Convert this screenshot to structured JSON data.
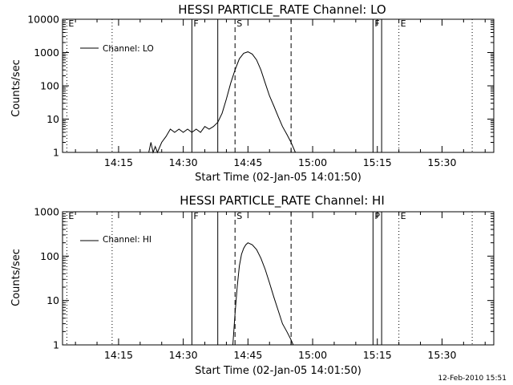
{
  "footer": {
    "timestamp": "12-Feb-2010 15:51"
  },
  "chart_data": [
    {
      "type": "line",
      "title": "HESSI PARTICLE_RATE Channel: LO",
      "xlabel": "Start Time (02-Jan-05 14:01:50)",
      "ylabel": "Counts/sec",
      "y_scale": "log",
      "ylim": [
        1,
        10000
      ],
      "xlim": [
        "14:02",
        "15:42"
      ],
      "x_ticks": [
        "14:15",
        "14:30",
        "14:45",
        "15:00",
        "15:15",
        "15:30"
      ],
      "y_ticks": [
        "1",
        "10",
        "100",
        "1000",
        "10000"
      ],
      "legend": {
        "placement": "top-left",
        "entries": [
          "Channel: LO"
        ]
      },
      "grid": false,
      "markers": [
        {
          "time": "14:03",
          "style": "dotted",
          "label": "E"
        },
        {
          "time": "14:13.5",
          "style": "dotted",
          "label": ""
        },
        {
          "time": "14:32",
          "style": "solid",
          "label": "F"
        },
        {
          "time": "14:38",
          "style": "solid",
          "label": ""
        },
        {
          "time": "14:42",
          "style": "dashed",
          "label": "S"
        },
        {
          "time": "14:55",
          "style": "dashed",
          "label": ""
        },
        {
          "time": "15:14",
          "style": "solid",
          "label": "F"
        },
        {
          "time": "15:16",
          "style": "solid",
          "label": ""
        },
        {
          "time": "15:20",
          "style": "dotted",
          "label": "E"
        },
        {
          "time": "15:37",
          "style": "dotted",
          "label": ""
        }
      ],
      "series": [
        {
          "x": [
            "14:22",
            "14:22.5",
            "14:23",
            "14:23.5",
            "14:24",
            "14:25",
            "14:26",
            "14:27",
            "14:28",
            "14:29",
            "14:30",
            "14:31",
            "14:32",
            "14:33",
            "14:34",
            "14:35",
            "14:36",
            "14:37",
            "14:38",
            "14:39",
            "14:40",
            "14:41",
            "14:42",
            "14:43",
            "14:44",
            "14:45",
            "14:46",
            "14:47",
            "14:48",
            "14:49",
            "14:50",
            "14:51",
            "14:52",
            "14:53",
            "14:54",
            "14:55",
            "14:56"
          ],
          "y": [
            1,
            2,
            1,
            1.5,
            1,
            2,
            3,
            5,
            4,
            5,
            4,
            5,
            4,
            5,
            4,
            6,
            5,
            6,
            8,
            15,
            40,
            120,
            300,
            650,
            950,
            1050,
            900,
            600,
            300,
            120,
            50,
            25,
            12,
            6,
            3.5,
            2,
            1
          ]
        }
      ]
    },
    {
      "type": "line",
      "title": "HESSI PARTICLE_RATE Channel: HI",
      "xlabel": "Start Time (02-Jan-05 14:01:50)",
      "ylabel": "Counts/sec",
      "y_scale": "log",
      "ylim": [
        1,
        1000
      ],
      "xlim": [
        "14:02",
        "15:42"
      ],
      "x_ticks": [
        "14:15",
        "14:30",
        "14:45",
        "15:00",
        "15:15",
        "15:30"
      ],
      "y_ticks": [
        "1",
        "10",
        "100",
        "1000"
      ],
      "legend": {
        "placement": "top-left",
        "entries": [
          "Channel: HI"
        ]
      },
      "grid": false,
      "markers": [
        {
          "time": "14:03",
          "style": "dotted",
          "label": "E"
        },
        {
          "time": "14:13.5",
          "style": "dotted",
          "label": ""
        },
        {
          "time": "14:32",
          "style": "solid",
          "label": "F"
        },
        {
          "time": "14:38",
          "style": "solid",
          "label": ""
        },
        {
          "time": "14:42",
          "style": "dashed",
          "label": "S"
        },
        {
          "time": "14:55",
          "style": "dashed",
          "label": ""
        },
        {
          "time": "15:14",
          "style": "solid",
          "label": "P"
        },
        {
          "time": "15:16",
          "style": "solid",
          "label": ""
        },
        {
          "time": "15:20",
          "style": "dotted",
          "label": "E"
        },
        {
          "time": "15:37",
          "style": "dotted",
          "label": ""
        }
      ],
      "series": [
        {
          "x": [
            "14:41.5",
            "14:42",
            "14:42.5",
            "14:43",
            "14:43.5",
            "14:44",
            "14:44.5",
            "14:45",
            "14:46",
            "14:47",
            "14:48",
            "14:49",
            "14:50",
            "14:51",
            "14:52",
            "14:53",
            "14:54",
            "14:55",
            "14:55.5"
          ],
          "y": [
            1,
            5,
            20,
            60,
            110,
            150,
            180,
            200,
            180,
            140,
            90,
            50,
            25,
            12,
            6,
            3,
            2,
            1.3,
            1
          ]
        }
      ]
    }
  ]
}
